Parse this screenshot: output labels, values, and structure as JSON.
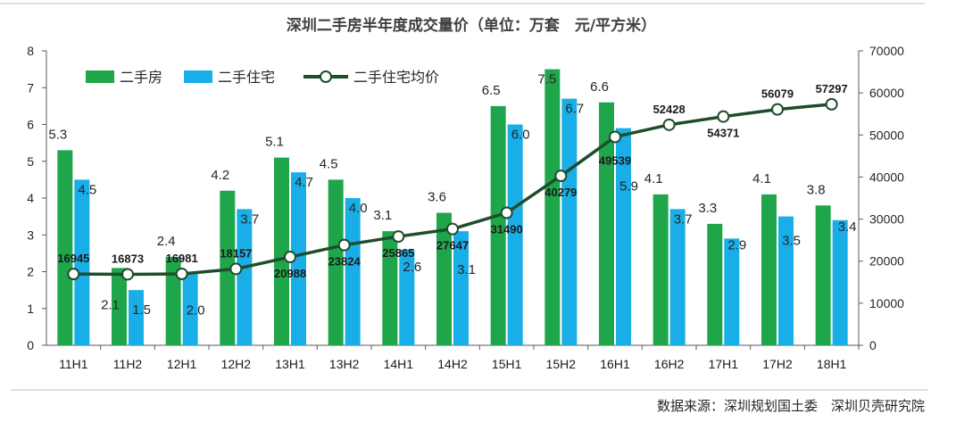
{
  "chart_data": {
    "type": "bar",
    "title": "深圳二手房半年度成交量价（单位：万套　元/平方米）",
    "categories": [
      "11H1",
      "11H2",
      "12H1",
      "12H2",
      "13H1",
      "13H2",
      "14H1",
      "14H2",
      "15H1",
      "15H2",
      "16H1",
      "16H2",
      "17H1",
      "17H2",
      "18H1"
    ],
    "series": [
      {
        "name": "二手房",
        "kind": "bar",
        "axis": "left",
        "color": "#1fa64a",
        "values": [
          5.3,
          2.1,
          2.4,
          4.2,
          5.1,
          4.5,
          3.1,
          3.6,
          6.5,
          7.5,
          6.6,
          4.1,
          3.3,
          4.1,
          3.8
        ],
        "labels": [
          "5.3",
          "2.1",
          "2.4",
          "4.2",
          "5.1",
          "4.5",
          "3.1",
          "3.6",
          "6.5",
          "7.5",
          "6.6",
          "4.1",
          "3.3",
          "4.1",
          "3.8"
        ]
      },
      {
        "name": "二手住宅",
        "kind": "bar",
        "axis": "left",
        "color": "#19aee8",
        "values": [
          4.5,
          1.5,
          2.0,
          3.7,
          4.7,
          4.0,
          2.6,
          3.1,
          6.0,
          6.7,
          5.9,
          3.7,
          2.9,
          3.5,
          3.4
        ],
        "labels": [
          "4.5",
          "1.5",
          "2.0",
          "3.7",
          "4.7",
          "4.0",
          "2.6",
          "3.1",
          "6.0",
          "6.7",
          "5.9",
          "3.7",
          "2.9",
          "3.5",
          "3.4"
        ]
      },
      {
        "name": "二手住宅均价",
        "kind": "line",
        "axis": "right",
        "color": "#1e4d2b",
        "values": [
          16945,
          16873,
          16981,
          18157,
          20988,
          23824,
          25865,
          27647,
          31490,
          40279,
          49539,
          52428,
          54371,
          56079,
          57297
        ],
        "labels": [
          "16945",
          "16873",
          "16981",
          "18157",
          "20988",
          "23824",
          "25865",
          "27647",
          "31490",
          "40279",
          "49539",
          "52428",
          "54371",
          "56079",
          "57297"
        ]
      }
    ],
    "y_left": {
      "min": 0,
      "max": 8,
      "ticks": [
        "0",
        "1",
        "2",
        "3",
        "4",
        "5",
        "6",
        "7",
        "8"
      ]
    },
    "y_right": {
      "min": 0,
      "max": 70000,
      "ticks": [
        "0",
        "10000",
        "20000",
        "30000",
        "40000",
        "50000",
        "60000",
        "70000"
      ]
    },
    "legend_position": "top-left",
    "grid": false
  },
  "source": "数据来源：深圳规划国土委　深圳贝壳研究院"
}
